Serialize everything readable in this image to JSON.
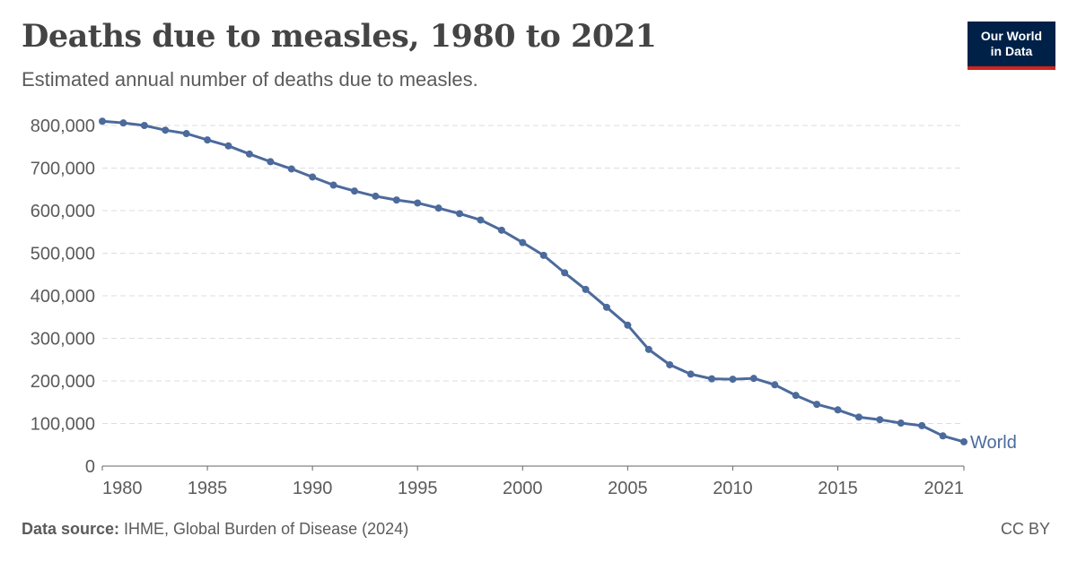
{
  "header": {
    "title": "Deaths due to measles, 1980 to 2021",
    "subtitle": "Estimated annual number of deaths due to measles.",
    "logo_line1": "Our World",
    "logo_line2": "in Data"
  },
  "footer": {
    "source_label": "Data source:",
    "source_text": " IHME, Global Burden of Disease (2024)",
    "license": "CC BY"
  },
  "colors": {
    "series": "#4c6a9c",
    "grid": "#dddddd",
    "axis": "#666666",
    "text": "#5b5b5b"
  },
  "chart_data": {
    "type": "line",
    "title": "Deaths due to measles, 1980 to 2021",
    "subtitle": "Estimated annual number of deaths due to measles.",
    "xlabel": "",
    "ylabel": "",
    "xlim": [
      1980,
      2021
    ],
    "ylim": [
      0,
      800000
    ],
    "grid": "horizontal dashed",
    "legend": "inline label at line end",
    "x_ticks": [
      {
        "value": 1980,
        "label": "1980"
      },
      {
        "value": 1985,
        "label": "1985"
      },
      {
        "value": 1990,
        "label": "1990"
      },
      {
        "value": 1995,
        "label": "1995"
      },
      {
        "value": 2000,
        "label": "2000"
      },
      {
        "value": 2005,
        "label": "2005"
      },
      {
        "value": 2010,
        "label": "2010"
      },
      {
        "value": 2015,
        "label": "2015"
      },
      {
        "value": 2021,
        "label": "2021"
      }
    ],
    "y_ticks": [
      {
        "value": 0,
        "label": "0"
      },
      {
        "value": 100000,
        "label": "100,000"
      },
      {
        "value": 200000,
        "label": "200,000"
      },
      {
        "value": 300000,
        "label": "300,000"
      },
      {
        "value": 400000,
        "label": "400,000"
      },
      {
        "value": 500000,
        "label": "500,000"
      },
      {
        "value": 600000,
        "label": "600,000"
      },
      {
        "value": 700000,
        "label": "700,000"
      },
      {
        "value": 800000,
        "label": "800,000"
      }
    ],
    "x": [
      1980,
      1981,
      1982,
      1983,
      1984,
      1985,
      1986,
      1987,
      1988,
      1989,
      1990,
      1991,
      1992,
      1993,
      1994,
      1995,
      1996,
      1997,
      1998,
      1999,
      2000,
      2001,
      2002,
      2003,
      2004,
      2005,
      2006,
      2007,
      2008,
      2009,
      2010,
      2011,
      2012,
      2013,
      2014,
      2015,
      2016,
      2017,
      2018,
      2019,
      2020,
      2021
    ],
    "series": [
      {
        "name": "World",
        "color": "#4c6a9c",
        "values": [
          810000,
          806000,
          800000,
          789000,
          781000,
          766000,
          752000,
          733000,
          715000,
          698000,
          679000,
          660000,
          646000,
          634000,
          625000,
          618000,
          606000,
          593000,
          578000,
          554000,
          525000,
          495000,
          454000,
          415000,
          373000,
          331000,
          274000,
          238000,
          216000,
          205000,
          204000,
          206000,
          191000,
          166000,
          145000,
          132000,
          115000,
          109000,
          101000,
          95000,
          71000,
          57000
        ]
      }
    ]
  }
}
